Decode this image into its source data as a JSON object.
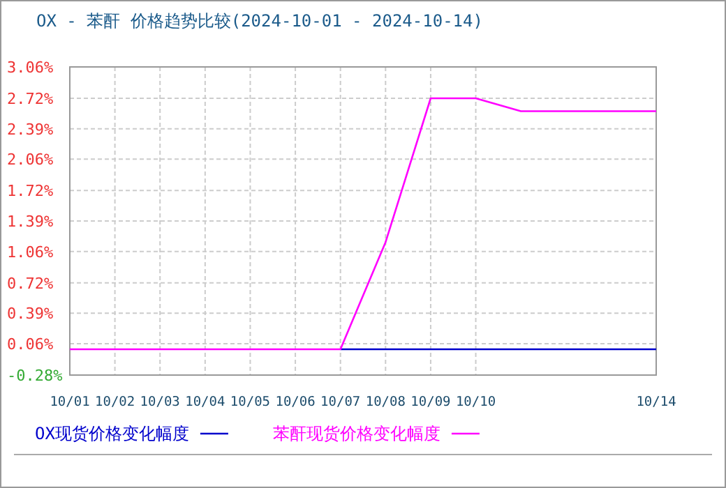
{
  "chart_data": {
    "type": "line",
    "title": "OX - 苯酐 价格趋势比较(2024-10-01 - 2024-10-14)",
    "x": [
      "2024-10-01",
      "2024-10-02",
      "2024-10-03",
      "2024-10-04",
      "2024-10-05",
      "2024-10-06",
      "2024-10-07",
      "2024-10-08",
      "2024-10-09",
      "2024-10-10",
      "2024-10-11",
      "2024-10-14"
    ],
    "series": [
      {
        "name": "OX现货价格变化幅度",
        "color": "#0000cc",
        "values": [
          null,
          null,
          null,
          null,
          null,
          null,
          0,
          0,
          0,
          0,
          0,
          0
        ]
      },
      {
        "name": "苯酐现货价格变化幅度",
        "color": "#ff00ff",
        "values": [
          0,
          0,
          0,
          0,
          0,
          0,
          0,
          1.16,
          2.72,
          2.72,
          2.58,
          2.58
        ]
      }
    ],
    "xlim": [
      "2024-10-01",
      "2024-10-14"
    ],
    "xticks": [
      {
        "value": "2024-10-01",
        "label": "10/01"
      },
      {
        "value": "2024-10-02",
        "label": "10/02"
      },
      {
        "value": "2024-10-03",
        "label": "10/03"
      },
      {
        "value": "2024-10-04",
        "label": "10/04"
      },
      {
        "value": "2024-10-05",
        "label": "10/05"
      },
      {
        "value": "2024-10-06",
        "label": "10/06"
      },
      {
        "value": "2024-10-07",
        "label": "10/07"
      },
      {
        "value": "2024-10-08",
        "label": "10/08"
      },
      {
        "value": "2024-10-09",
        "label": "10/09"
      },
      {
        "value": "2024-10-10",
        "label": "10/10"
      },
      {
        "value": "2024-10-14",
        "label": "10/14"
      }
    ],
    "ylim": [
      -0.28,
      3.06
    ],
    "yticks": [
      {
        "value": 3.06,
        "label": "3.06%"
      },
      {
        "value": 2.72,
        "label": "2.72%"
      },
      {
        "value": 2.39,
        "label": "2.39%"
      },
      {
        "value": 2.06,
        "label": "2.06%"
      },
      {
        "value": 1.72,
        "label": "1.72%"
      },
      {
        "value": 1.39,
        "label": "1.39%"
      },
      {
        "value": 1.06,
        "label": "1.06%"
      },
      {
        "value": 0.72,
        "label": "0.72%"
      },
      {
        "value": 0.39,
        "label": "0.39%"
      },
      {
        "value": 0.06,
        "label": "0.06%"
      },
      {
        "value": -0.28,
        "label": "-0.28%"
      }
    ],
    "grid": true,
    "legend": "bottom"
  }
}
